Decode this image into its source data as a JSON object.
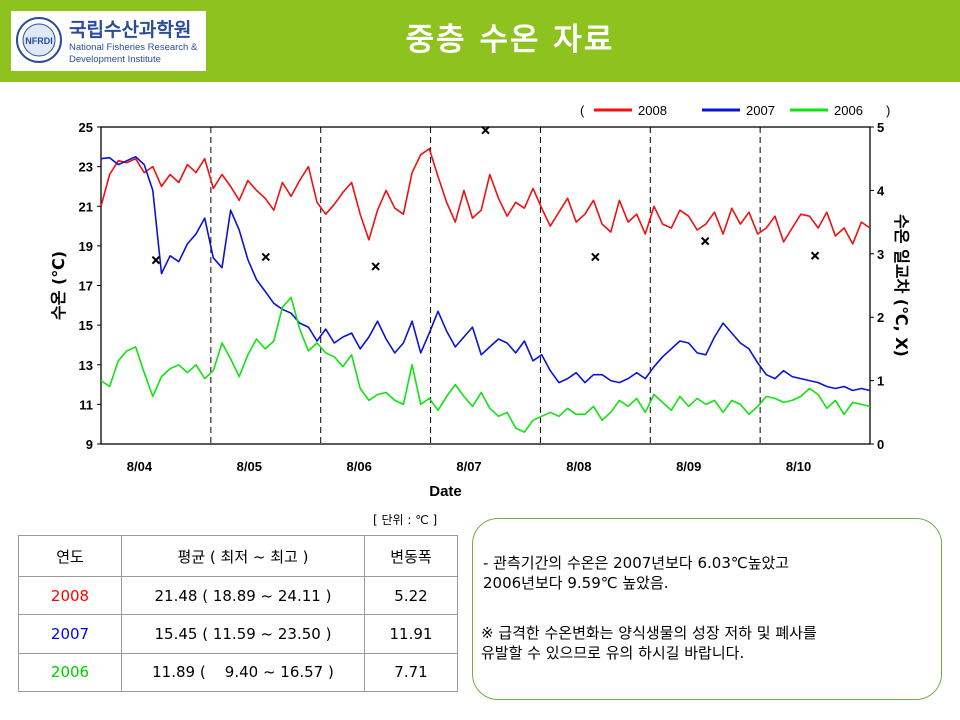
{
  "header": {
    "title": "중층 수온 자료",
    "logo": {
      "korean_name": "국립수산과학원",
      "english_line1": "National Fisheries Research &",
      "english_line2": "Development Institute",
      "emblem_text": "NFRDI",
      "bg_color": "#8dc21f"
    }
  },
  "chart_data": {
    "type": "line+scatter",
    "xlabel": "Date",
    "ylabel_left": "수온 (℃)",
    "ylabel_right": "수온 일교차 (℃, X)",
    "ylim_left": [
      9,
      25
    ],
    "yticks_left": [
      9,
      11,
      13,
      15,
      17,
      19,
      21,
      23,
      25
    ],
    "ylim_right": [
      0,
      5
    ],
    "yticks_right": [
      0,
      1,
      2,
      3,
      4,
      5
    ],
    "x_tick_labels": [
      "8/04",
      "8/05",
      "8/06",
      "8/07",
      "8/08",
      "8/09",
      "8/10"
    ],
    "legend_open": "(",
    "legend_close": ")",
    "legend_position": "top-right",
    "grid": "vertical dashed lines at day boundaries",
    "series": [
      {
        "name": "2008",
        "color": "#ee1111",
        "values": [
          21.0,
          22.6,
          23.3,
          23.2,
          23.4,
          22.7,
          23.0,
          22.0,
          22.6,
          22.2,
          23.1,
          22.7,
          23.4,
          21.9,
          22.6,
          22.0,
          21.3,
          22.3,
          21.8,
          21.4,
          20.8,
          22.2,
          21.5,
          22.3,
          23.0,
          21.2,
          20.6,
          21.1,
          21.7,
          22.2,
          20.6,
          19.3,
          20.8,
          21.8,
          20.9,
          20.6,
          22.7,
          23.6,
          23.9,
          22.5,
          21.2,
          20.2,
          21.8,
          20.4,
          20.8,
          22.6,
          21.4,
          20.5,
          21.2,
          20.9,
          21.9,
          20.9,
          20.0,
          20.7,
          21.4,
          20.2,
          20.6,
          21.3,
          20.1,
          19.7,
          21.3,
          20.2,
          20.6,
          19.6,
          21.0,
          20.1,
          19.9,
          20.8,
          20.5,
          19.8,
          20.1,
          20.7,
          19.6,
          20.9,
          20.1,
          20.7,
          19.6,
          19.9,
          20.5,
          19.2,
          19.9,
          20.6,
          20.5,
          19.9,
          20.7,
          19.5,
          19.9,
          19.1,
          20.2,
          19.9
        ]
      },
      {
        "name": "2007",
        "color": "#0a14d2",
        "values": [
          23.4,
          23.45,
          23.1,
          23.3,
          23.5,
          23.1,
          21.8,
          17.6,
          18.5,
          18.2,
          19.1,
          19.6,
          20.4,
          18.4,
          17.9,
          20.8,
          19.8,
          18.3,
          17.3,
          16.7,
          16.1,
          15.8,
          15.6,
          15.1,
          14.9,
          14.2,
          14.8,
          14.1,
          14.4,
          14.6,
          13.8,
          14.4,
          15.2,
          14.3,
          13.6,
          14.1,
          15.2,
          13.6,
          14.6,
          15.7,
          14.7,
          13.9,
          14.4,
          14.9,
          13.5,
          13.9,
          14.3,
          14.1,
          13.6,
          14.2,
          13.2,
          13.5,
          12.7,
          12.1,
          12.3,
          12.6,
          12.1,
          12.5,
          12.5,
          12.2,
          12.1,
          12.3,
          12.6,
          12.3,
          12.9,
          13.4,
          13.8,
          14.2,
          14.1,
          13.6,
          13.5,
          14.4,
          15.1,
          14.6,
          14.1,
          13.8,
          13.1,
          12.5,
          12.3,
          12.7,
          12.4,
          12.3,
          12.2,
          12.1,
          11.9,
          11.8,
          11.9,
          11.7,
          11.8,
          11.7
        ]
      },
      {
        "name": "2006",
        "color": "#12e212",
        "values": [
          12.2,
          11.9,
          13.2,
          13.7,
          13.9,
          12.6,
          11.4,
          12.4,
          12.8,
          13.0,
          12.6,
          13.0,
          12.3,
          12.7,
          14.1,
          13.3,
          12.4,
          13.5,
          14.3,
          13.8,
          14.2,
          15.9,
          16.4,
          14.8,
          13.7,
          14.1,
          13.6,
          13.4,
          12.9,
          13.5,
          11.8,
          11.2,
          11.5,
          11.6,
          11.2,
          11.0,
          13.0,
          11.0,
          11.3,
          10.7,
          11.4,
          12.0,
          11.4,
          10.9,
          11.6,
          10.8,
          10.4,
          10.6,
          9.8,
          9.6,
          10.2,
          10.4,
          10.6,
          10.4,
          10.8,
          10.5,
          10.5,
          10.9,
          10.2,
          10.6,
          11.2,
          10.9,
          11.3,
          10.6,
          11.5,
          11.1,
          10.7,
          11.4,
          10.9,
          11.3,
          11.0,
          11.2,
          10.6,
          11.2,
          11.0,
          10.5,
          10.9,
          11.4,
          11.3,
          11.1,
          11.2,
          11.4,
          11.8,
          11.5,
          10.8,
          11.2,
          10.5,
          11.1,
          11.0,
          10.9
        ]
      }
    ],
    "daily_range_marker": "x",
    "daily_range": [
      {
        "day": "8/04",
        "value": 2.9
      },
      {
        "day": "8/05",
        "value": 2.95
      },
      {
        "day": "8/06",
        "value": 2.8
      },
      {
        "day": "8/07",
        "value": 4.95
      },
      {
        "day": "8/08",
        "value": 2.95
      },
      {
        "day": "8/09",
        "value": 3.2
      },
      {
        "day": "8/10",
        "value": 2.97
      }
    ]
  },
  "unit_note": "[ 단위 : ℃ ]",
  "stats_table": {
    "headers": [
      "연도",
      "평균 ( 최저 ~ 최고 )",
      "변동폭"
    ],
    "rows": [
      {
        "year": "2008",
        "avg": "21.48 ( 18.89 ~ 24.11 )",
        "range": "5.22",
        "color": "#ff0000"
      },
      {
        "year": "2007",
        "avg": "15.45 ( 11.59 ~ 23.50 )",
        "range": "11.91",
        "color": "#0000ff"
      },
      {
        "year": "2006",
        "avg": "11.89 (    9.40 ~ 16.57 )",
        "range": "7.71",
        "color": "#00cc00"
      }
    ]
  },
  "notes": {
    "note1": "- 관측기간의 수온은 2007년보다 6.03℃높았고\n   2006년보다 9.59℃ 높았음.",
    "note2": "※ 급격한 수온변화는 양식생물의 성장 저하 및 폐사를\n     유발할 수 있으므로 유의 하시길 바랍니다."
  }
}
